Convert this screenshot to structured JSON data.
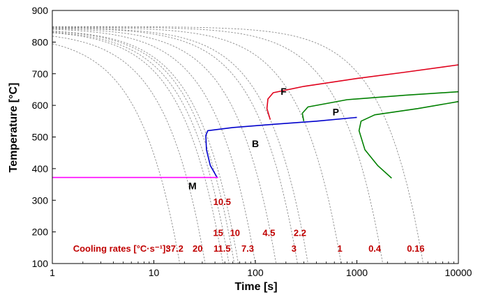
{
  "chart_data": {
    "type": "line",
    "title": "",
    "xlabel": "Time [s]",
    "ylabel": "Temperature [°C]",
    "xscale": "log",
    "xlim": [
      1,
      10000
    ],
    "ylim": [
      100,
      900
    ],
    "x_ticks": [
      1,
      10,
      100,
      1000,
      10000
    ],
    "x_tick_labels": [
      "1",
      "10",
      "100",
      "1000",
      "10000"
    ],
    "y_ticks": [
      100,
      200,
      300,
      400,
      500,
      600,
      700,
      800,
      900
    ],
    "y_tick_labels": [
      "100",
      "200",
      "300",
      "400",
      "500",
      "600",
      "700",
      "800",
      "900"
    ],
    "grid": false,
    "colors": {
      "ferrite": "#e0001b",
      "pearlite": "#008000",
      "bainite": "#0000cc",
      "martensite": "#ff00ff",
      "cooling": "#8c8c8c",
      "rate_label": "#c00000"
    },
    "cooling_curves": [
      {
        "rate": "37.2",
        "t_end": 18,
        "t0_temp": 825
      },
      {
        "rate": "20",
        "t_end": 32,
        "t0_temp": 835
      },
      {
        "rate": "15",
        "t_end": 48,
        "t0_temp": 840
      },
      {
        "rate": "10.5",
        "t_end": 55,
        "t0_temp": 840
      },
      {
        "rate": "11.5",
        "t_end": 62,
        "t0_temp": 842
      },
      {
        "rate": "10",
        "t_end": 68,
        "t0_temp": 842
      },
      {
        "rate": "7.3",
        "t_end": 100,
        "t0_temp": 845
      },
      {
        "rate": "4.5",
        "t_end": 160,
        "t0_temp": 845
      },
      {
        "rate": "3",
        "t_end": 260,
        "t0_temp": 846
      },
      {
        "rate": "2.2",
        "t_end": 330,
        "t0_temp": 846
      },
      {
        "rate": "1",
        "t_end": 700,
        "t0_temp": 847
      },
      {
        "rate": "0.4",
        "t_end": 1800,
        "t0_temp": 848
      },
      {
        "rate": "0.16",
        "t_end": 4500,
        "t0_temp": 849
      }
    ],
    "transformation_lines": [
      {
        "phase": "ferrite-start",
        "color_key": "ferrite",
        "points": [
          [
            140,
            555
          ],
          [
            130,
            590
          ],
          [
            133,
            620
          ],
          [
            150,
            640
          ],
          [
            300,
            660
          ],
          [
            1000,
            685
          ],
          [
            3000,
            705
          ],
          [
            10000,
            728
          ]
        ]
      },
      {
        "phase": "pearlite-start",
        "color_key": "pearlite",
        "points": [
          [
            300,
            550
          ],
          [
            290,
            575
          ],
          [
            330,
            595
          ],
          [
            800,
            618
          ],
          [
            3000,
            632
          ],
          [
            10000,
            643
          ]
        ]
      },
      {
        "phase": "pearlite-finish",
        "color_key": "pearlite",
        "points": [
          [
            2200,
            370
          ],
          [
            1600,
            410
          ],
          [
            1200,
            460
          ],
          [
            1050,
            520
          ],
          [
            1100,
            550
          ],
          [
            1500,
            570
          ],
          [
            4000,
            590
          ],
          [
            10000,
            612
          ]
        ]
      },
      {
        "phase": "bainite-start",
        "color_key": "bainite",
        "points": [
          [
            42,
            372
          ],
          [
            36,
            410
          ],
          [
            33,
            460
          ],
          [
            32.5,
            505
          ],
          [
            34,
            520
          ],
          [
            60,
            530
          ],
          [
            150,
            540
          ],
          [
            400,
            550
          ],
          [
            1000,
            562
          ]
        ]
      },
      {
        "phase": "martensite-start",
        "color_key": "martensite",
        "points": [
          [
            1,
            372
          ],
          [
            43,
            372
          ]
        ]
      }
    ],
    "phase_labels": [
      {
        "text": "F",
        "t": 190,
        "temp": 633
      },
      {
        "text": "P",
        "t": 620,
        "temp": 568
      },
      {
        "text": "B",
        "t": 100,
        "temp": 468
      },
      {
        "text": "M",
        "t": 24,
        "temp": 335
      }
    ],
    "rate_labels": [
      {
        "text": "Cooling rates [°C·s⁻¹]:",
        "t": 1.6,
        "temp": 137
      },
      {
        "text": "37.2",
        "t": 16,
        "temp": 137
      },
      {
        "text": "20",
        "t": 27,
        "temp": 137
      },
      {
        "text": "15",
        "t": 43,
        "temp": 187
      },
      {
        "text": "10.5",
        "t": 47,
        "temp": 285
      },
      {
        "text": "10",
        "t": 63,
        "temp": 187
      },
      {
        "text": "11.5",
        "t": 47,
        "temp": 137
      },
      {
        "text": "7.3",
        "t": 84,
        "temp": 137
      },
      {
        "text": "4.5",
        "t": 136,
        "temp": 187
      },
      {
        "text": "3",
        "t": 240,
        "temp": 137
      },
      {
        "text": "2.2",
        "t": 275,
        "temp": 187
      },
      {
        "text": "1",
        "t": 680,
        "temp": 137
      },
      {
        "text": "0.4",
        "t": 1500,
        "temp": 137
      },
      {
        "text": "0.16",
        "t": 3800,
        "temp": 137
      }
    ]
  }
}
